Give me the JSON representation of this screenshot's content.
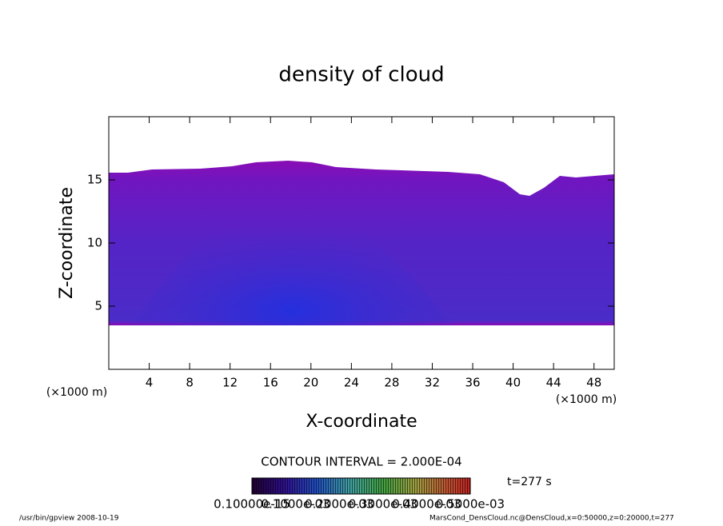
{
  "chart_data": {
    "type": "contour",
    "title": "density of cloud",
    "x_label": "X-coordinate",
    "y_label": "Z-coordinate",
    "x_unit": "(×1000 m)",
    "y_unit": "(×1000 m)",
    "xlim": [
      0,
      50
    ],
    "xticks": [
      4,
      8,
      12,
      16,
      20,
      24,
      28,
      32,
      36,
      40,
      44,
      48
    ],
    "ylim": [
      0,
      20
    ],
    "yticks": [
      5,
      10,
      15
    ],
    "contour_interval": "CONTOUR INTERVAL = 2.000E-04",
    "time_label": "t=277 s",
    "colorbar_labels": [
      "0.10000e-15",
      "0.1000e-03",
      "0.2000e-03",
      "0.3000e-03",
      "0.4000e-03",
      "0.5000e-03"
    ],
    "footer_left": "/usr/bin/gpview   2008-10-19",
    "footer_right": "MarsCond_DensCloud.nc@DensCloud,x=0:50000,z=0:20000,t=277"
  }
}
